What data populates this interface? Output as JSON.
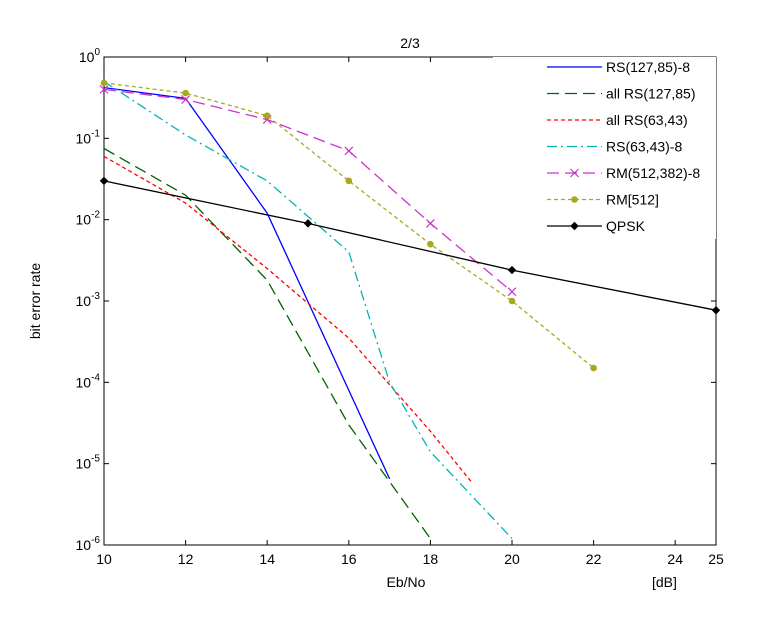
{
  "chart_data": {
    "type": "line",
    "title": "2/3",
    "xlabel": "Eb/No",
    "x_unit_label": "[dB]",
    "ylabel": "bit error rate",
    "xlim": [
      10,
      25
    ],
    "ylim": [
      1e-06,
      1
    ],
    "y_scale": "log",
    "grid": false,
    "legend_position": "top-right",
    "x_ticks": [
      10,
      12,
      14,
      16,
      18,
      20,
      22,
      24,
      25
    ],
    "y_ticks": [
      {
        "exp": "0",
        "value": 1
      },
      {
        "exp": "-1",
        "value": 0.1
      },
      {
        "exp": "-2",
        "value": 0.01
      },
      {
        "exp": "-3",
        "value": 0.001
      },
      {
        "exp": "-4",
        "value": 0.0001
      },
      {
        "exp": "-5",
        "value": 1e-05
      },
      {
        "exp": "-6",
        "value": 1e-06
      }
    ],
    "series": [
      {
        "name": "RS(127,85)-8",
        "color": "#0000ff",
        "dash": "",
        "marker": "none",
        "x": [
          10,
          12,
          14,
          17
        ],
        "y": [
          0.42,
          0.31,
          0.012,
          6.5e-06
        ]
      },
      {
        "name": "all RS(127,85)",
        "color": "#006400",
        "dash": "12,6",
        "marker": "none",
        "x": [
          10,
          12,
          14,
          16,
          18
        ],
        "y": [
          0.075,
          0.02,
          0.0018,
          3e-05,
          1.2e-06
        ]
      },
      {
        "name": "all RS(63,43)",
        "color": "#ff0000",
        "dash": "4,3",
        "marker": "none",
        "x": [
          10,
          12,
          14,
          16,
          18,
          19
        ],
        "y": [
          0.06,
          0.016,
          0.0025,
          0.00035,
          2.5e-05,
          6e-06
        ]
      },
      {
        "name": "RS(63,43)-8",
        "color": "#00b5b5",
        "dash": "10,4,2,4",
        "marker": "none",
        "x": [
          10,
          12,
          14,
          16,
          17,
          18,
          20
        ],
        "y": [
          0.5,
          0.11,
          0.03,
          0.004,
          0.0001,
          1.4e-05,
          1.2e-06
        ]
      },
      {
        "name": "RM(512,382)-8",
        "color": "#cc33cc",
        "dash": "12,6",
        "marker": "x",
        "x": [
          10,
          12,
          14,
          16,
          18,
          20
        ],
        "y": [
          0.4,
          0.3,
          0.17,
          0.07,
          0.009,
          0.0013
        ]
      },
      {
        "name": "RM[512]",
        "color": "#a8a820",
        "dash": "4,3",
        "marker": "dot",
        "x": [
          10,
          12,
          14,
          16,
          18,
          20,
          22
        ],
        "y": [
          0.48,
          0.36,
          0.19,
          0.03,
          0.005,
          0.001,
          0.00015
        ]
      },
      {
        "name": "QPSK",
        "color": "#000000",
        "dash": "",
        "marker": "diamond",
        "x": [
          10,
          15,
          20,
          25
        ],
        "y": [
          0.03,
          0.009,
          0.0024,
          0.00077
        ]
      }
    ]
  }
}
